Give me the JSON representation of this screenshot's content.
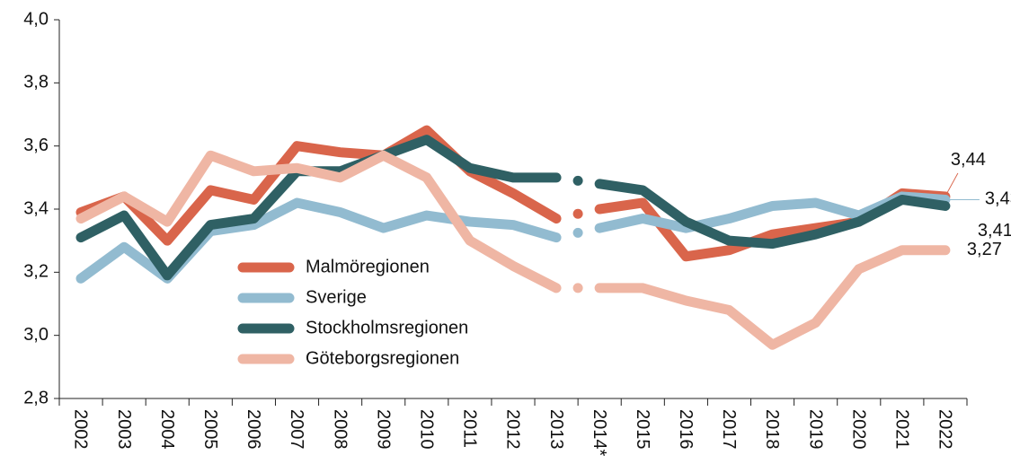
{
  "chart_data": {
    "type": "line",
    "categories": [
      "2002",
      "2003",
      "2004",
      "2005",
      "2006",
      "2007",
      "2008",
      "2009",
      "2010",
      "2011",
      "2012",
      "2013",
      "2014*",
      "2015",
      "2016",
      "2017",
      "2018",
      "2019",
      "2020",
      "2021",
      "2022"
    ],
    "ylim": [
      2.8,
      4.0
    ],
    "yticks": [
      {
        "value": 2.8,
        "label": "2,8"
      },
      {
        "value": 3.0,
        "label": "3,0"
      },
      {
        "value": 3.2,
        "label": "3,2"
      },
      {
        "value": 3.4,
        "label": "3,4"
      },
      {
        "value": 3.6,
        "label": "3,6"
      },
      {
        "value": 3.8,
        "label": "3,8"
      },
      {
        "value": 4.0,
        "label": "4,0"
      }
    ],
    "grid": false,
    "series": [
      {
        "name": "Malmöregionen",
        "color": "#d9654b",
        "values": [
          3.39,
          3.44,
          3.3,
          3.46,
          3.43,
          3.6,
          3.58,
          3.57,
          3.65,
          3.52,
          3.45,
          3.37,
          3.4,
          3.42,
          3.25,
          3.27,
          3.32,
          3.34,
          3.36,
          3.45,
          3.44
        ],
        "value_labels": [
          null,
          null,
          null,
          null,
          null,
          null,
          null,
          null,
          null,
          null,
          null,
          null,
          null,
          null,
          null,
          null,
          null,
          null,
          null,
          null,
          "3,44"
        ]
      },
      {
        "name": "Sverige",
        "color": "#92bbd0",
        "values": [
          3.18,
          3.28,
          3.18,
          3.33,
          3.35,
          3.42,
          3.39,
          3.34,
          3.38,
          3.36,
          3.35,
          3.31,
          3.34,
          3.37,
          3.34,
          3.37,
          3.41,
          3.42,
          3.38,
          3.44,
          3.43
        ],
        "value_labels": [
          null,
          null,
          null,
          null,
          null,
          null,
          null,
          null,
          null,
          null,
          null,
          null,
          null,
          null,
          null,
          null,
          null,
          null,
          null,
          null,
          "3,43"
        ]
      },
      {
        "name": "Stockholmsregionen",
        "color": "#2f6064",
        "values": [
          3.31,
          3.38,
          3.19,
          3.35,
          3.37,
          3.52,
          3.52,
          3.57,
          3.62,
          3.53,
          3.5,
          3.5,
          3.48,
          3.46,
          3.36,
          3.3,
          3.29,
          3.32,
          3.36,
          3.43,
          3.41
        ],
        "value_labels": [
          null,
          null,
          null,
          null,
          null,
          null,
          null,
          null,
          null,
          null,
          null,
          null,
          null,
          null,
          null,
          null,
          null,
          null,
          null,
          null,
          "3,41"
        ]
      },
      {
        "name": "Göteborgsregionen",
        "color": "#efb6a4",
        "values": [
          3.37,
          3.44,
          3.36,
          3.57,
          3.52,
          3.53,
          3.5,
          3.57,
          3.5,
          3.3,
          3.22,
          3.15,
          3.15,
          3.15,
          3.11,
          3.08,
          2.97,
          3.04,
          3.21,
          3.27,
          3.27
        ],
        "value_labels": [
          null,
          null,
          null,
          null,
          null,
          null,
          null,
          null,
          null,
          null,
          null,
          null,
          null,
          null,
          null,
          null,
          null,
          null,
          null,
          null,
          "3,27"
        ]
      }
    ]
  }
}
